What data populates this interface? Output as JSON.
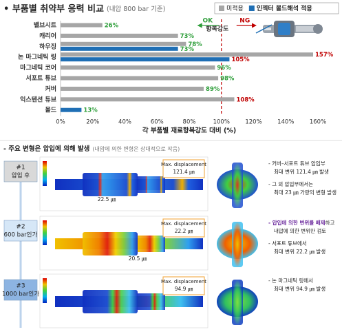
{
  "chart_data": {
    "type": "barh",
    "title": "• 부품별 취약부 응력 비교",
    "subtitle": "(내압 800 bar 기준)",
    "categories": [
      "밸브시트",
      "캐리어",
      "하우징",
      "논 마그네틱 링",
      "마그네틱 코어",
      "서포트 튜브",
      "커버",
      "익스텐션 튜브",
      "몰드"
    ],
    "series": [
      {
        "name": "미적용",
        "color": "#a6a6a6",
        "values": [
          26,
          73,
          78,
          157,
          96,
          98,
          89,
          108,
          null
        ],
        "value_labels": [
          "26%",
          "73%",
          "78%",
          "157%",
          "96%",
          "98%",
          "89%",
          "108%",
          null
        ]
      },
      {
        "name": "인젝터 몰드해석 적용",
        "color": "#1f6fb5",
        "values": [
          null,
          null,
          73,
          105,
          null,
          null,
          null,
          null,
          13
        ],
        "value_labels": [
          null,
          null,
          "73%",
          "105%",
          null,
          null,
          null,
          null,
          "13%"
        ]
      }
    ],
    "xlim": [
      0,
      160
    ],
    "xticks": [
      {
        "value": 0,
        "label": "0%"
      },
      {
        "value": 20,
        "label": "20%"
      },
      {
        "value": 40,
        "label": "40%"
      },
      {
        "value": 60,
        "label": "60%"
      },
      {
        "value": 80,
        "label": "80%"
      },
      {
        "value": 100,
        "label": "100%"
      },
      {
        "value": 120,
        "label": "120%"
      },
      {
        "value": 140,
        "label": "140%"
      },
      {
        "value": 160,
        "label": "160%"
      }
    ],
    "xlabel": "각 부품별 재료항복강도 대비 (%)",
    "limit": 100,
    "limit_label": "항복강도",
    "ok_label": "OK",
    "ng_label": "NG",
    "ok_color": "#2e9e3a",
    "ng_color": "#c00000",
    "grid": false,
    "legend": "top-right"
  },
  "deformation": {
    "heading": "- 주요 변형은 압입에 의해 발생",
    "note": "(내압에 의한 변형은 상대적으로 작음)",
    "rows": [
      {
        "num": "#1",
        "condition": "압입 후",
        "box_title": "Max. displacement",
        "box_value": "121.4 ㎛",
        "callout": "22.5 ㎛",
        "notes": [
          [
            {
              "text": "- 커버–서포트 튜브 압입부"
            }
          ],
          [
            {
              "text": "최대 변위 121.4 ㎛ 발생"
            }
          ],
          [
            {
              "text": "- 그 외 압입부에서는"
            }
          ],
          [
            {
              "text": "최대 23 ㎛ 가량의 변형 발생"
            }
          ]
        ]
      },
      {
        "num": "#2",
        "condition": "600 bar인가",
        "box_title": "Max. displacement",
        "box_value": "22.2 ㎛",
        "callout": "20.5 ㎛",
        "notes": [
          [
            {
              "text": "- 압입에 의한 변위를 배제",
              "color": "#7030a0"
            },
            {
              "text": "하고"
            }
          ],
          [
            {
              "text": "내압에 의한 변위만 검토"
            }
          ],
          [
            {
              "text": "- 서포트 튜브에서"
            }
          ],
          [
            {
              "text": "최대 변위 22.2 ㎛ 발생"
            }
          ]
        ]
      },
      {
        "num": "#3",
        "condition": "1000 bar인가",
        "box_title": "Max. displacement",
        "box_value": "94.9 ㎛",
        "callout": null,
        "notes": [
          [
            {
              "text": "- 논 마그네틱 링에서"
            }
          ],
          [
            {
              "text": "최대 변위 94.9 ㎛ 발생"
            }
          ]
        ]
      }
    ]
  }
}
